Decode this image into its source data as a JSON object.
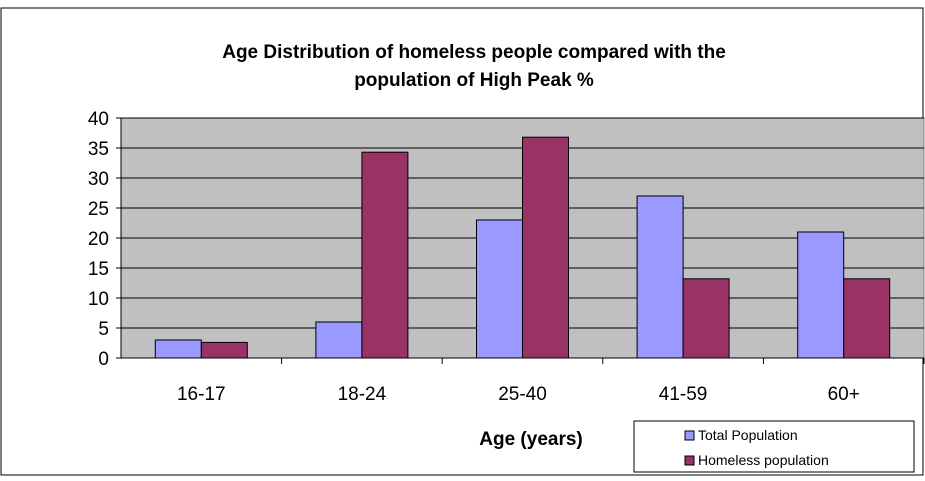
{
  "chart_data": {
    "type": "bar",
    "title_lines": [
      "Age Distribution of homeless people compared with the",
      "population of High Peak %"
    ],
    "xlabel": "Age (years)",
    "ylabel": "",
    "categories": [
      "16-17",
      "18-24",
      "25-40",
      "41-59",
      "60+"
    ],
    "yticks": [
      "0",
      "5",
      "10",
      "15",
      "20",
      "25",
      "30",
      "35",
      "40"
    ],
    "ylim": [
      0,
      40
    ],
    "grid": true,
    "legend_position": "bottom-right",
    "series": [
      {
        "name": "Total Population",
        "color": "#9999ff",
        "values": [
          3,
          6,
          23,
          27,
          21
        ]
      },
      {
        "name": "Homeless population",
        "color": "#993366",
        "values": [
          2.6,
          34.3,
          36.8,
          13.2,
          13.2
        ]
      }
    ],
    "plot_background": "#c0c0c0"
  }
}
